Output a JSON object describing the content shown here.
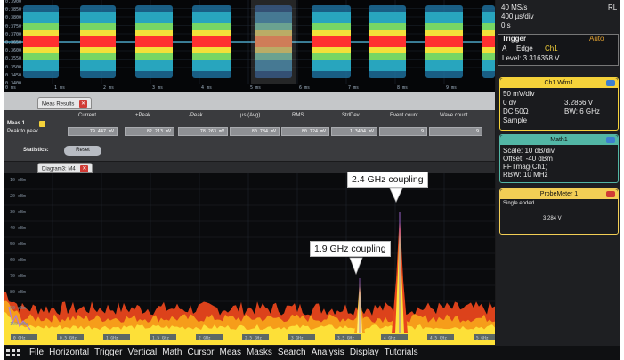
{
  "top_waveform": {
    "y_labels": [
      "0.3900",
      "0.3850",
      "0.3800",
      "0.3750",
      "0.3700",
      "0.3650",
      "0.3600",
      "0.3550",
      "0.3500",
      "0.3450",
      "0.3400"
    ],
    "x_labels": [
      "0 ms",
      "1 ms",
      "2 ms",
      "3 ms",
      "4 ms",
      "5 ms",
      "6 ms",
      "7 ms",
      "8 ms",
      "9 ms",
      "10 ms"
    ],
    "burst_color_core": "#ff3030",
    "burst_color_outer": "#2bb2c8"
  },
  "right_panel": {
    "sample_rate": "40 MS/s",
    "record_length": "RL",
    "time_scale": "400 µs/div",
    "position": "0 s",
    "trigger_title": "Trigger",
    "trigger_mode": "Auto",
    "trigger_type": "A",
    "trigger_edge": "Edge",
    "trigger_source": "Ch1",
    "trigger_level": "Level: 3.316358 V",
    "ch1": {
      "title": "Ch1 Wfm1",
      "scale": "50 mV/div",
      "offset_label": "0 dv",
      "offset_value": "3.2866 V",
      "coupling": "DC 50Ω",
      "bandwidth": "BW: 6 GHz",
      "mode": "Sample"
    },
    "math": {
      "title": "Math1",
      "scale": "Scale: 10 dB/div",
      "offset": "Offset: -40 dBm",
      "function": "FFTmag(Ch1)",
      "rbw": "RBW: 10 MHz"
    },
    "probe": {
      "title": "ProbeMeter 1",
      "mode": "Single ended",
      "value": "3.284 V"
    },
    "colors": {
      "ch1_head": "#f5d23a",
      "math_head": "#52b6a5",
      "probe_head": "#f2ce55"
    }
  },
  "meas": {
    "tab_label": "Meas Results",
    "columns": [
      "Current",
      "+Peak",
      "-Peak",
      "µs (Avg)",
      "RMS",
      "StdDev",
      "Event count",
      "Wave count"
    ],
    "meas_label": "Meas 1",
    "row_label": "Peak to peak",
    "row_values": [
      "79.447 mV",
      "82.213 mV",
      "78.263 mV",
      "80.784 mV",
      "80.724 mV",
      "1.3404 mV",
      "9",
      "9"
    ],
    "statistics_label": "Statistics:",
    "reset_label": "Reset"
  },
  "spectrum": {
    "tab_label": "Diagram3: M4",
    "y_labels": [
      "-10 dBm",
      "-20 dBm",
      "-30 dBm",
      "-40 dBm",
      "-50 dBm",
      "-60 dBm",
      "-70 dBm",
      "-80 dBm",
      "-90 dBm",
      "-100 dBm"
    ],
    "x_labels": [
      "0 GHz",
      "0.5 GHz",
      "1 GHz",
      "1.5 GHz",
      "2 GHz",
      "2.5 GHz",
      "3 GHz",
      "3.5 GHz",
      "4 GHz",
      "4.5 GHz",
      "5 GHz"
    ],
    "callout_1": "2.4 GHz coupling",
    "callout_2": "1.9 GHz coupling"
  },
  "menu": [
    "File",
    "Horizontal",
    "Trigger",
    "Vertical",
    "Math",
    "Cursor",
    "Meas",
    "Masks",
    "Search",
    "Analysis",
    "Display",
    "Tutorials"
  ]
}
